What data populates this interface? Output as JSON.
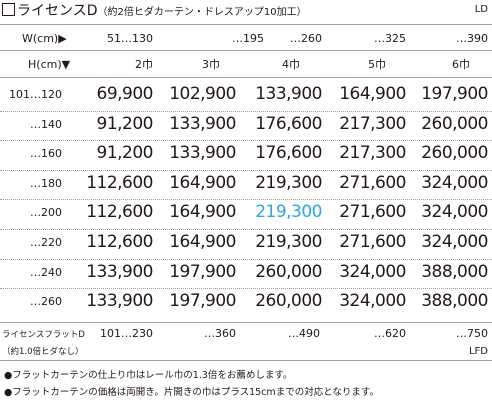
{
  "title": {
    "main": "ライセンスD",
    "sub": "（約2倍ヒダカーテン・ドレスアップ10加工）",
    "code": "LD"
  },
  "width_label": "W(cm)▶",
  "width_ranges": [
    "51…130",
    "…195",
    "…260",
    "…325",
    "…390"
  ],
  "height_label": "H(cm)▼",
  "panels": [
    "2巾",
    "3巾",
    "4巾",
    "5巾",
    "6巾"
  ],
  "rows": [
    {
      "h": "101…120",
      "prices": [
        "69,900",
        "102,900",
        "133,900",
        "164,900",
        "197,900"
      ]
    },
    {
      "h": "…140",
      "prices": [
        "91,200",
        "133,900",
        "176,600",
        "217,300",
        "260,000"
      ]
    },
    {
      "h": "…160",
      "prices": [
        "91,200",
        "133,900",
        "176,600",
        "217,300",
        "260,000"
      ]
    },
    {
      "h": "…180",
      "prices": [
        "112,600",
        "164,900",
        "219,300",
        "271,600",
        "324,000"
      ]
    },
    {
      "h": "…200",
      "prices": [
        "112,600",
        "164,900",
        "219,300",
        "271,600",
        "324,000"
      ]
    },
    {
      "h": "…220",
      "prices": [
        "112,600",
        "164,900",
        "219,300",
        "271,600",
        "324,000"
      ]
    },
    {
      "h": "…240",
      "prices": [
        "133,900",
        "197,900",
        "260,000",
        "324,000",
        "388,000"
      ]
    },
    {
      "h": "…260",
      "prices": [
        "133,900",
        "197,900",
        "260,000",
        "324,000",
        "388,000"
      ]
    }
  ],
  "highlight_color": "#2ea7e0",
  "flat": {
    "label1": "ライセンスフラットD",
    "label2": "（約1.0倍ヒダなし）",
    "widths": [
      "101…230",
      "…360",
      "…490",
      "…620",
      "…750"
    ],
    "code": "LFD"
  },
  "notes": [
    "●フラットカーテンの仕上り巾はレール巾の1.3倍をお薦めします。",
    "●フラットカーテンの価格は両開き。片開きの巾はプラス15cmまでの対応となります。"
  ]
}
